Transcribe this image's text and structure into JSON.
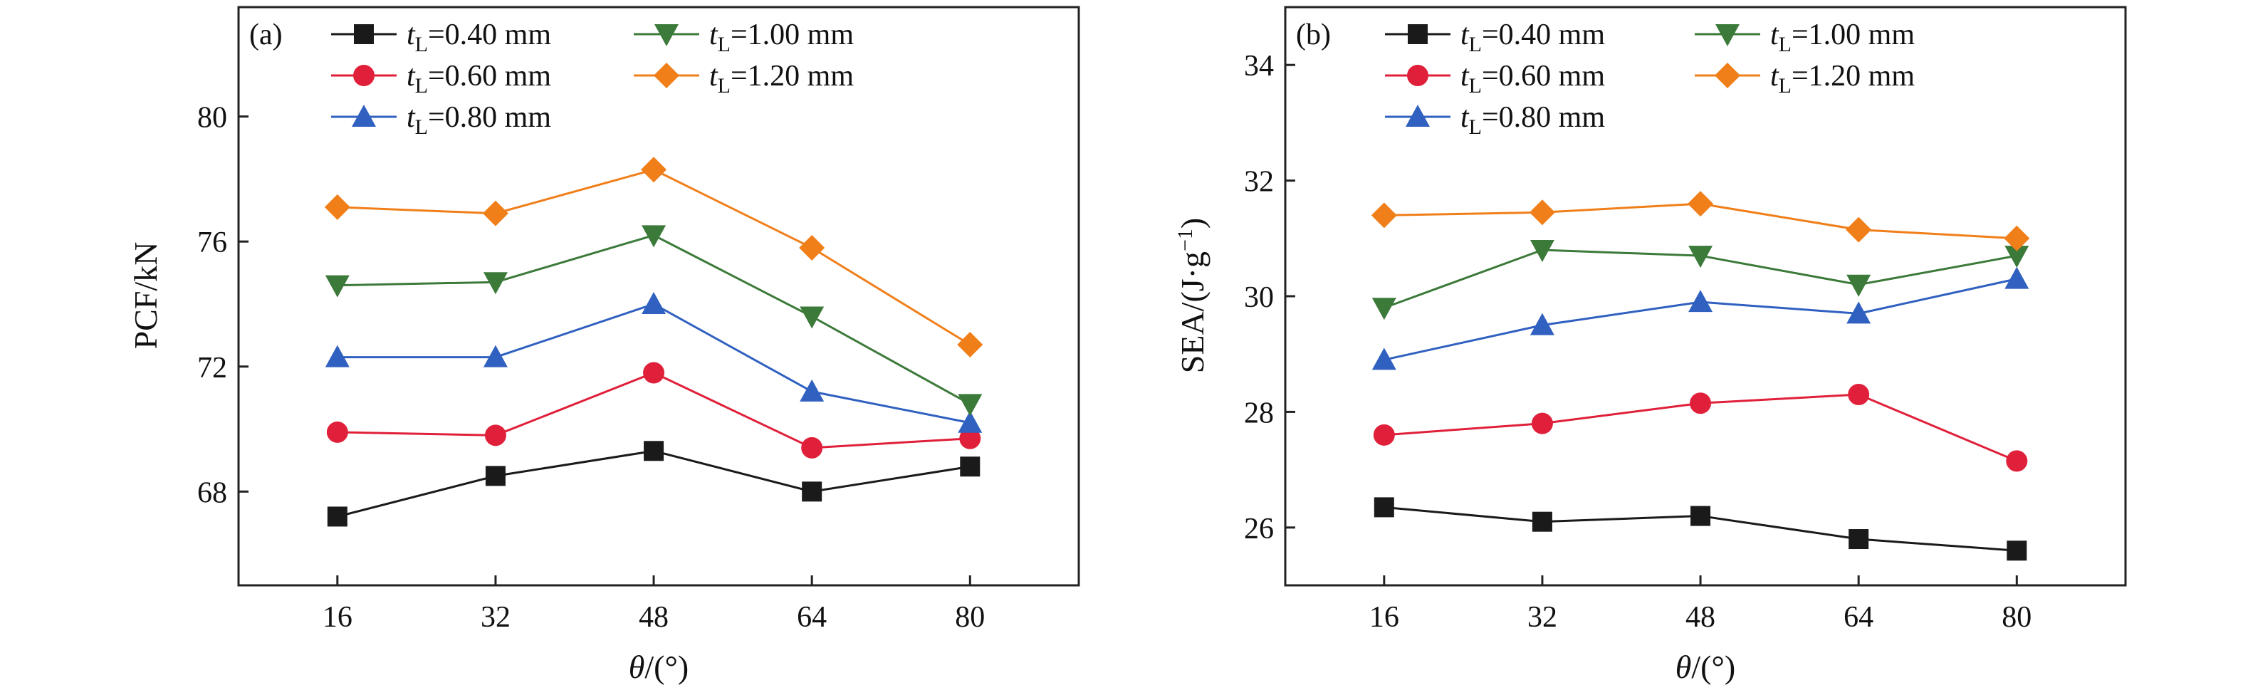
{
  "chart_data": [
    {
      "type": "line",
      "panel_label": "(a)",
      "xlabel_var": "θ",
      "xlabel_unit": "/(°)",
      "ylabel": "PCF/kN",
      "x": [
        16,
        32,
        48,
        64,
        80
      ],
      "x_ticks": [
        "16",
        "32",
        "48",
        "64",
        "80"
      ],
      "xlim": [
        6,
        91
      ],
      "ylim": [
        65,
        83.5
      ],
      "y_ticks": [
        "68",
        "72",
        "76",
        "80"
      ],
      "grid": false,
      "legend_position": "top",
      "series": [
        {
          "name_prefix": "t",
          "name_sub": "L",
          "name_suffix": "=0.40 mm",
          "marker": "square",
          "color": "#1a1a1a",
          "values": [
            67.2,
            68.5,
            69.3,
            68.0,
            68.8
          ]
        },
        {
          "name_prefix": "t",
          "name_sub": "L",
          "name_suffix": "=0.60 mm",
          "marker": "circle",
          "color": "#e0203a",
          "values": [
            69.9,
            69.8,
            71.8,
            69.4,
            69.7
          ]
        },
        {
          "name_prefix": "t",
          "name_sub": "L",
          "name_suffix": "=0.80 mm",
          "marker": "triangle-up",
          "color": "#3060c0",
          "values": [
            72.3,
            72.3,
            74.0,
            71.2,
            70.2
          ]
        },
        {
          "name_prefix": "t",
          "name_sub": "L",
          "name_suffix": "=1.00 mm",
          "marker": "triangle-down",
          "color": "#3c7a3a",
          "values": [
            74.6,
            74.7,
            76.2,
            73.6,
            70.8
          ]
        },
        {
          "name_prefix": "t",
          "name_sub": "L",
          "name_suffix": "=1.20 mm",
          "marker": "diamond",
          "color": "#f07f1a",
          "values": [
            77.1,
            76.9,
            78.3,
            75.8,
            72.7
          ]
        }
      ]
    },
    {
      "type": "line",
      "panel_label": "(b)",
      "xlabel_var": "θ",
      "xlabel_unit": "/(°)",
      "ylabel_main": "SEA/(J·g",
      "ylabel_sup": "−1",
      "ylabel_end": ")",
      "x": [
        16,
        32,
        48,
        64,
        80
      ],
      "x_ticks": [
        "16",
        "32",
        "48",
        "64",
        "80"
      ],
      "xlim": [
        6,
        91
      ],
      "ylim": [
        25,
        35
      ],
      "y_ticks": [
        "26",
        "28",
        "30",
        "32",
        "34"
      ],
      "grid": false,
      "legend_position": "top",
      "series": [
        {
          "name_prefix": "t",
          "name_sub": "L",
          "name_suffix": "=0.40 mm",
          "marker": "square",
          "color": "#1a1a1a",
          "values": [
            26.35,
            26.1,
            26.2,
            25.8,
            25.6
          ]
        },
        {
          "name_prefix": "t",
          "name_sub": "L",
          "name_suffix": "=0.60 mm",
          "marker": "circle",
          "color": "#e0203a",
          "values": [
            27.6,
            27.8,
            28.15,
            28.3,
            27.15
          ]
        },
        {
          "name_prefix": "t",
          "name_sub": "L",
          "name_suffix": "=0.80 mm",
          "marker": "triangle-up",
          "color": "#3060c0",
          "values": [
            28.9,
            29.5,
            29.9,
            29.7,
            30.3
          ]
        },
        {
          "name_prefix": "t",
          "name_sub": "L",
          "name_suffix": "=1.00 mm",
          "marker": "triangle-down",
          "color": "#3c7a3a",
          "values": [
            29.8,
            30.8,
            30.7,
            30.2,
            30.7
          ]
        },
        {
          "name_prefix": "t",
          "name_sub": "L",
          "name_suffix": "=1.20 mm",
          "marker": "diamond",
          "color": "#f07f1a",
          "values": [
            31.4,
            31.45,
            31.6,
            31.15,
            31.0
          ]
        }
      ]
    }
  ]
}
